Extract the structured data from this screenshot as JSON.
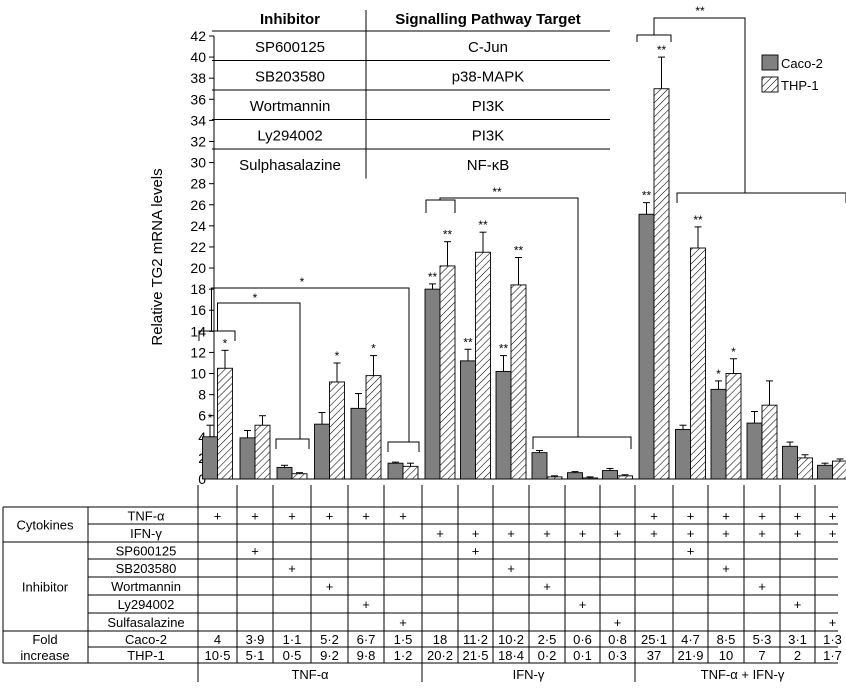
{
  "chart_data": {
    "type": "bar",
    "ylabel": "Relative TG2 mRNA levels",
    "ylim": [
      0,
      42
    ],
    "yticks": [
      0,
      2,
      4,
      6,
      8,
      10,
      12,
      14,
      16,
      18,
      20,
      22,
      24,
      26,
      28,
      30,
      32,
      34,
      36,
      38,
      40,
      42
    ],
    "legend_position": "top-right",
    "series": [
      {
        "name": "Caco-2",
        "color": "#808080",
        "pattern": "solid",
        "values": [
          4,
          3.9,
          1.1,
          5.2,
          6.7,
          1.5,
          18,
          11.2,
          10.2,
          2.5,
          0.6,
          0.8,
          25.1,
          4.7,
          8.5,
          5.3,
          3.1,
          1.3
        ],
        "errors": [
          1.1,
          0.7,
          0.2,
          1.1,
          1.4,
          0.1,
          0.5,
          1.1,
          1.5,
          0.2,
          0.1,
          0.2,
          1.1,
          0.4,
          0.8,
          1.1,
          0.4,
          0.2
        ],
        "significance": [
          "*",
          "",
          "",
          "",
          "",
          "",
          "**",
          "**",
          "**",
          "",
          "",
          "",
          "**",
          "",
          "*",
          "",
          "",
          ""
        ]
      },
      {
        "name": "THP-1",
        "color": "#ffffff",
        "pattern": "hatched",
        "values": [
          10.5,
          5.1,
          0.5,
          9.2,
          9.8,
          1.2,
          20.2,
          21.5,
          18.4,
          0.2,
          0.1,
          0.3,
          37,
          21.9,
          10,
          7,
          2,
          1.7
        ],
        "errors": [
          1.7,
          0.9,
          0.1,
          1.8,
          1.9,
          0.3,
          2.3,
          1.9,
          2.6,
          0.1,
          0.1,
          0.1,
          3,
          2,
          1.4,
          2.3,
          0.3,
          0.2
        ],
        "significance": [
          "*",
          "",
          "",
          "*",
          "*",
          "",
          "**",
          "**",
          "**",
          "",
          "",
          "",
          "**",
          "**",
          "*",
          "",
          "",
          ""
        ]
      }
    ],
    "significance_brackets": [
      {
        "label": "*",
        "from": 0,
        "to": [
          2
        ]
      },
      {
        "label": "*",
        "from": 0,
        "to": [
          5
        ]
      },
      {
        "label": "**",
        "from": 6,
        "to": [
          9,
          10,
          11
        ]
      },
      {
        "label": "**",
        "from": 12,
        "to": [
          13,
          14,
          15,
          16,
          17
        ]
      }
    ],
    "inset_table": {
      "headers": [
        "Inhibitor",
        "Signalling Pathway Target"
      ],
      "rows": [
        [
          "SP600125",
          "C-Jun"
        ],
        [
          "SB203580",
          "p38-MAPK"
        ],
        [
          "Wortmannin",
          "PI3K"
        ],
        [
          "Ly294002",
          "PI3K"
        ],
        [
          "Sulphasalazine",
          "NF-κB"
        ]
      ]
    },
    "condition_table": {
      "groups": [
        {
          "label": "Cytokines",
          "rows": [
            {
              "name": "TNF-α",
              "marks": [
                "+",
                "+",
                "+",
                "+",
                "+",
                "+",
                "",
                "",
                "",
                "",
                "",
                "",
                "+",
                "+",
                "+",
                "+",
                "+",
                "+"
              ]
            },
            {
              "name": "IFN-γ",
              "marks": [
                "",
                "",
                "",
                "",
                "",
                "",
                "+",
                "+",
                "+",
                "+",
                "+",
                "+",
                "+",
                "+",
                "+",
                "+",
                "+",
                "+"
              ]
            }
          ]
        },
        {
          "label": "Inhibitor",
          "rows": [
            {
              "name": "SP600125",
              "marks": [
                "",
                "+",
                "",
                "",
                "",
                "",
                "",
                "+",
                "",
                "",
                "",
                "",
                "",
                "+",
                "",
                "",
                "",
                ""
              ]
            },
            {
              "name": "SB203580",
              "marks": [
                "",
                "",
                "+",
                "",
                "",
                "",
                "",
                "",
                "+",
                "",
                "",
                "",
                "",
                "",
                "+",
                "",
                "",
                ""
              ]
            },
            {
              "name": "Wortmannin",
              "marks": [
                "",
                "",
                "",
                "+",
                "",
                "",
                "",
                "",
                "",
                "+",
                "",
                "",
                "",
                "",
                "",
                "+",
                "",
                ""
              ]
            },
            {
              "name": "Ly294002",
              "marks": [
                "",
                "",
                "",
                "",
                "+",
                "",
                "",
                "",
                "",
                "",
                "+",
                "",
                "",
                "",
                "",
                "",
                "+",
                ""
              ]
            },
            {
              "name": "Sulfasalazine",
              "marks": [
                "",
                "",
                "",
                "",
                "",
                "+",
                "",
                "",
                "",
                "",
                "",
                "+",
                "",
                "",
                "",
                "",
                "",
                "+"
              ]
            }
          ]
        },
        {
          "label": "Fold increase",
          "label_lines": [
            "Fold",
            "increase"
          ],
          "rows": [
            {
              "name": "Caco-2",
              "marks": [
                "4",
                "3·9",
                "1·1",
                "5·2",
                "6·7",
                "1·5",
                "18",
                "11·2",
                "10·2",
                "2·5",
                "0·6",
                "0·8",
                "25·1",
                "4·7",
                "8·5",
                "5·3",
                "3·1",
                "1·3"
              ]
            },
            {
              "name": "THP-1",
              "marks": [
                "10·5",
                "5·1",
                "0·5",
                "9·2",
                "9·8",
                "1·2",
                "20·2",
                "21·5",
                "18·4",
                "0·2",
                "0·1",
                "0·3",
                "37",
                "21·9",
                "10",
                "7",
                "2",
                "1·7"
              ]
            }
          ]
        }
      ],
      "group_labels": [
        "TNF-α",
        "IFN-γ",
        "TNF-α + IFN-γ"
      ]
    }
  }
}
